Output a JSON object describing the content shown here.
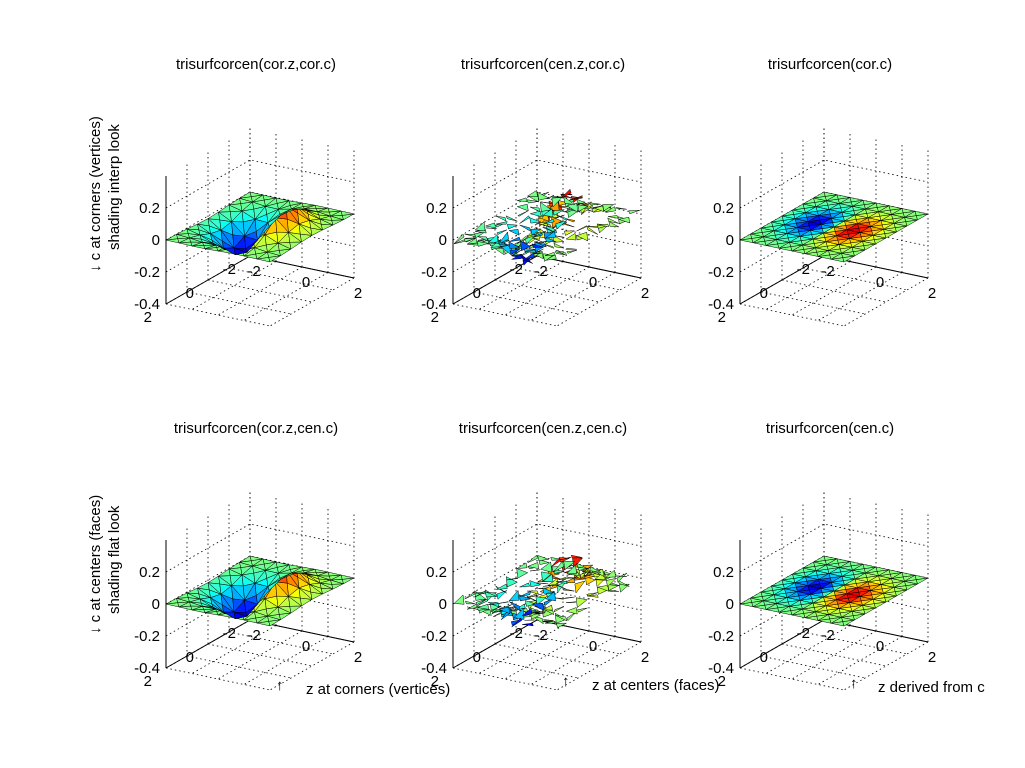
{
  "figure": {
    "background": "#ffffff",
    "row_labels": [
      {
        "arrow": "↓",
        "line1": "c at corners (vertices)",
        "line2": "shading interp look"
      },
      {
        "arrow": "↓",
        "line1": "c at centers (faces)",
        "line2": "shading flat look"
      }
    ],
    "column_notes": [
      {
        "arrow": "↑",
        "text": "z at corners (vertices)"
      },
      {
        "arrow": "↑",
        "text": "z at centers (faces)"
      },
      {
        "arrow": "↑",
        "text": "z derived from c"
      }
    ]
  },
  "chart_data": [
    {
      "type": "surface",
      "title": "trisurfcorcen(cor.z,cor.c)",
      "surface_kind": "smooth",
      "shading": "interp",
      "z_ticks": [
        "0.2",
        "0",
        "-0.2",
        "-0.4"
      ],
      "y_ticks": [
        "2",
        "0",
        "-2"
      ],
      "x_ticks": [
        "-2",
        "0",
        "2"
      ],
      "xlim": [
        -2,
        2
      ],
      "ylim": [
        -2,
        2
      ],
      "zlim": [
        -0.4,
        0.4
      ],
      "grid": true,
      "colormap": "jet"
    },
    {
      "type": "surface",
      "title": "trisurfcorcen(cen.z,cor.c)",
      "surface_kind": "scattered",
      "shading": "interp",
      "z_ticks": [
        "0.2",
        "0",
        "-0.2",
        "-0.4"
      ],
      "y_ticks": [
        "2",
        "0",
        "-2"
      ],
      "x_ticks": [
        "-2",
        "0",
        "2"
      ],
      "xlim": [
        -2,
        2
      ],
      "ylim": [
        -2,
        2
      ],
      "zlim": [
        -0.4,
        0.4
      ],
      "grid": true,
      "colormap": "jet"
    },
    {
      "type": "surface",
      "title": "trisurfcorcen(cor.c)",
      "surface_kind": "flat",
      "shading": "interp",
      "z_ticks": [
        "0.2",
        "0",
        "-0.2",
        "-0.4"
      ],
      "y_ticks": [
        "2",
        "0",
        "-2"
      ],
      "x_ticks": [
        "-2",
        "0",
        "2"
      ],
      "xlim": [
        -2,
        2
      ],
      "ylim": [
        -2,
        2
      ],
      "zlim": [
        -0.4,
        0.4
      ],
      "grid": true,
      "colormap": "jet"
    },
    {
      "type": "surface",
      "title": "trisurfcorcen(cor.z,cen.c)",
      "surface_kind": "smooth",
      "shading": "flat",
      "z_ticks": [
        "0.2",
        "0",
        "-0.2",
        "-0.4"
      ],
      "y_ticks": [
        "2",
        "0",
        "-2"
      ],
      "x_ticks": [
        "-2",
        "0",
        "2"
      ],
      "xlim": [
        -2,
        2
      ],
      "ylim": [
        -2,
        2
      ],
      "zlim": [
        -0.4,
        0.4
      ],
      "grid": true,
      "colormap": "jet"
    },
    {
      "type": "surface",
      "title": "trisurfcorcen(cen.z,cen.c)",
      "surface_kind": "scattered",
      "shading": "flat",
      "z_ticks": [
        "0.2",
        "0",
        "-0.2",
        "-0.4"
      ],
      "y_ticks": [
        "2",
        "0",
        "-2"
      ],
      "x_ticks": [
        "-2",
        "0",
        "2"
      ],
      "xlim": [
        -2,
        2
      ],
      "ylim": [
        -2,
        2
      ],
      "zlim": [
        -0.4,
        0.4
      ],
      "grid": true,
      "colormap": "jet"
    },
    {
      "type": "surface",
      "title": "trisurfcorcen(cen.c)",
      "surface_kind": "flat",
      "shading": "flat",
      "z_ticks": [
        "0.2",
        "0",
        "-0.2",
        "-0.4"
      ],
      "y_ticks": [
        "2",
        "0",
        "-2"
      ],
      "x_ticks": [
        "-2",
        "0",
        "2"
      ],
      "xlim": [
        -2,
        2
      ],
      "ylim": [
        -2,
        2
      ],
      "zlim": [
        -0.4,
        0.4
      ],
      "grid": true,
      "colormap": "jet"
    }
  ]
}
